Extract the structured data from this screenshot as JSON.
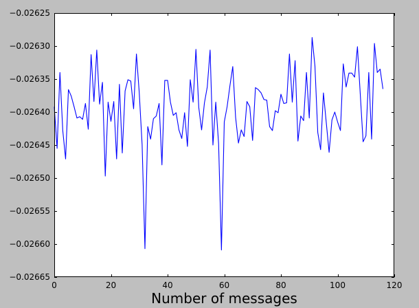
{
  "chart_data": {
    "type": "line",
    "title": "",
    "xlabel": "Number of messages",
    "ylabel": "",
    "xlim": [
      0,
      120
    ],
    "ylim": [
      -0.02665,
      -0.02625
    ],
    "x_ticks": [
      0,
      20,
      40,
      60,
      80,
      100,
      120
    ],
    "x_tick_labels": [
      "0",
      "20",
      "40",
      "60",
      "80",
      "100",
      "120"
    ],
    "y_ticks": [
      -0.02665,
      -0.0266,
      -0.02655,
      -0.0265,
      -0.02645,
      -0.0264,
      -0.02635,
      -0.0263,
      -0.02625
    ],
    "y_tick_labels": [
      "−0.02665",
      "−0.02660",
      "−0.02655",
      "−0.02650",
      "−0.02645",
      "−0.02640",
      "−0.02635",
      "−0.02630",
      "−0.02625"
    ],
    "grid": false,
    "line_color": "#0000ff",
    "background": "#ffffff",
    "series": [
      {
        "values": [
          [
            0,
            -0.026392
          ],
          [
            1,
            -0.026455
          ],
          [
            2,
            -0.02634
          ],
          [
            3,
            -0.026428
          ],
          [
            4,
            -0.026471
          ],
          [
            5,
            -0.026366
          ],
          [
            6,
            -0.026376
          ],
          [
            7,
            -0.026392
          ],
          [
            8,
            -0.026409
          ],
          [
            9,
            -0.026407
          ],
          [
            10,
            -0.026411
          ],
          [
            11,
            -0.026387
          ],
          [
            12,
            -0.026426
          ],
          [
            13,
            -0.026313
          ],
          [
            14,
            -0.026384
          ],
          [
            15,
            -0.026306
          ],
          [
            16,
            -0.026388
          ],
          [
            17,
            -0.026355
          ],
          [
            18,
            -0.026497
          ],
          [
            19,
            -0.026385
          ],
          [
            20,
            -0.026414
          ],
          [
            21,
            -0.026384
          ],
          [
            22,
            -0.026471
          ],
          [
            23,
            -0.026358
          ],
          [
            24,
            -0.026462
          ],
          [
            25,
            -0.026368
          ],
          [
            26,
            -0.026351
          ],
          [
            27,
            -0.026353
          ],
          [
            28,
            -0.026395
          ],
          [
            29,
            -0.026312
          ],
          [
            30,
            -0.026371
          ],
          [
            31,
            -0.026449
          ],
          [
            32,
            -0.026607
          ],
          [
            33,
            -0.026422
          ],
          [
            34,
            -0.026441
          ],
          [
            35,
            -0.02641
          ],
          [
            36,
            -0.026406
          ],
          [
            37,
            -0.026387
          ],
          [
            38,
            -0.02648
          ],
          [
            39,
            -0.026352
          ],
          [
            40,
            -0.026352
          ],
          [
            41,
            -0.026385
          ],
          [
            42,
            -0.026405
          ],
          [
            43,
            -0.026401
          ],
          [
            44,
            -0.026427
          ],
          [
            45,
            -0.02644
          ],
          [
            46,
            -0.026401
          ],
          [
            47,
            -0.026452
          ],
          [
            48,
            -0.026351
          ],
          [
            49,
            -0.026385
          ],
          [
            50,
            -0.026305
          ],
          [
            51,
            -0.026393
          ],
          [
            52,
            -0.026427
          ],
          [
            53,
            -0.026386
          ],
          [
            54,
            -0.026362
          ],
          [
            55,
            -0.026306
          ],
          [
            56,
            -0.02645
          ],
          [
            57,
            -0.026385
          ],
          [
            58,
            -0.026448
          ],
          [
            59,
            -0.026609
          ],
          [
            60,
            -0.026415
          ],
          [
            61,
            -0.026392
          ],
          [
            62,
            -0.02636
          ],
          [
            63,
            -0.026331
          ],
          [
            64,
            -0.026408
          ],
          [
            65,
            -0.026447
          ],
          [
            66,
            -0.026427
          ],
          [
            67,
            -0.026437
          ],
          [
            68,
            -0.026384
          ],
          [
            69,
            -0.026392
          ],
          [
            70,
            -0.026443
          ],
          [
            71,
            -0.026363
          ],
          [
            72,
            -0.026366
          ],
          [
            73,
            -0.026371
          ],
          [
            74,
            -0.026381
          ],
          [
            75,
            -0.026382
          ],
          [
            76,
            -0.026422
          ],
          [
            77,
            -0.026428
          ],
          [
            78,
            -0.026398
          ],
          [
            79,
            -0.026401
          ],
          [
            80,
            -0.026373
          ],
          [
            81,
            -0.026387
          ],
          [
            82,
            -0.026386
          ],
          [
            83,
            -0.026312
          ],
          [
            84,
            -0.026385
          ],
          [
            85,
            -0.026322
          ],
          [
            86,
            -0.026444
          ],
          [
            87,
            -0.026406
          ],
          [
            88,
            -0.026413
          ],
          [
            89,
            -0.02634
          ],
          [
            90,
            -0.026409
          ],
          [
            91,
            -0.026287
          ],
          [
            92,
            -0.02633
          ],
          [
            93,
            -0.026431
          ],
          [
            94,
            -0.026457
          ],
          [
            95,
            -0.026371
          ],
          [
            96,
            -0.026416
          ],
          [
            97,
            -0.026461
          ],
          [
            98,
            -0.026412
          ],
          [
            99,
            -0.0264
          ],
          [
            100,
            -0.026415
          ],
          [
            101,
            -0.026428
          ],
          [
            102,
            -0.026327
          ],
          [
            103,
            -0.026362
          ],
          [
            104,
            -0.026341
          ],
          [
            105,
            -0.026341
          ],
          [
            106,
            -0.026347
          ],
          [
            107,
            -0.026301
          ],
          [
            108,
            -0.026373
          ],
          [
            109,
            -0.026445
          ],
          [
            110,
            -0.026436
          ],
          [
            111,
            -0.02634
          ],
          [
            112,
            -0.026441
          ],
          [
            113,
            -0.026296
          ],
          [
            114,
            -0.02634
          ],
          [
            115,
            -0.026335
          ],
          [
            116,
            -0.026365
          ]
        ]
      }
    ]
  }
}
